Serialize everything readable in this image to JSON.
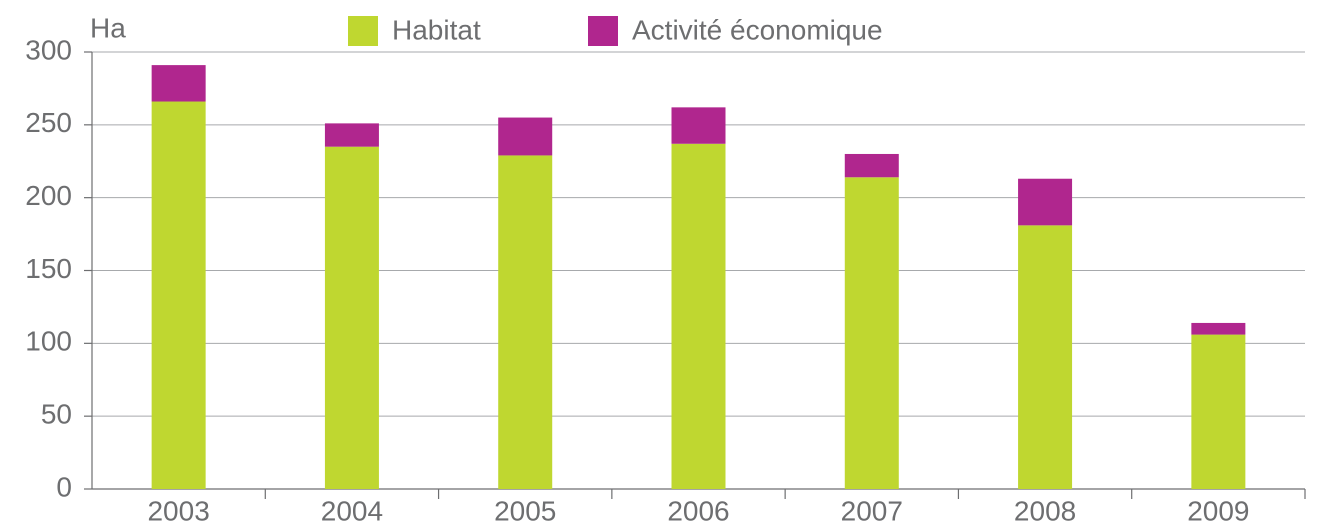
{
  "chart_data": {
    "type": "stacked_bar",
    "y_label": "Ha",
    "categories": [
      "2003",
      "2004",
      "2005",
      "2006",
      "2007",
      "2008",
      "2009"
    ],
    "series": [
      {
        "name": "Habitat",
        "color": "#bfd730",
        "values": [
          266,
          235,
          229,
          237,
          214,
          181,
          106
        ]
      },
      {
        "name": "Activité économique",
        "color": "#b0268e",
        "values": [
          25,
          16,
          26,
          25,
          16,
          32,
          8
        ]
      }
    ],
    "ylim": [
      0,
      300
    ],
    "yticks": [
      0,
      50,
      100,
      150,
      200,
      250,
      300
    ],
    "grid": true,
    "legend": "top"
  }
}
